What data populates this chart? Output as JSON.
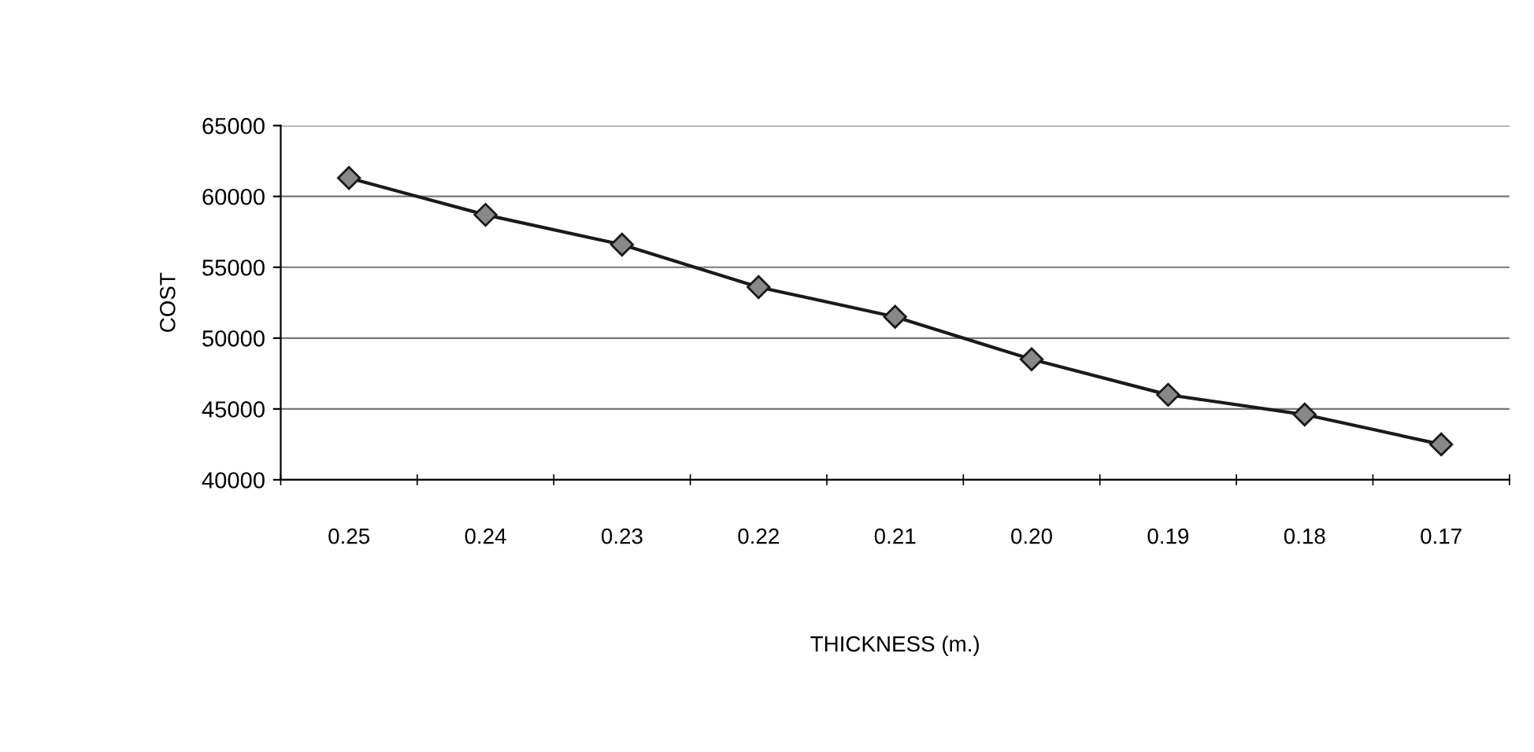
{
  "chart_data": {
    "type": "line",
    "xlabel": "THICKNESS (m.)",
    "ylabel": "COST",
    "categories": [
      "0.25",
      "0.24",
      "0.23",
      "0.22",
      "0.21",
      "0.20",
      "0.19",
      "0.18",
      "0.17"
    ],
    "series": [
      {
        "color": "#1a1a1a",
        "values": [
          61300,
          58700,
          56600,
          53600,
          51500,
          48500,
          46000,
          44600,
          42500
        ]
      }
    ],
    "ylim": [
      40000,
      65000
    ],
    "yticks": [
      40000,
      45000,
      50000,
      55000,
      60000,
      65000
    ],
    "grid": "y",
    "marker": "diamond",
    "line_style": "solid",
    "legend": false
  }
}
